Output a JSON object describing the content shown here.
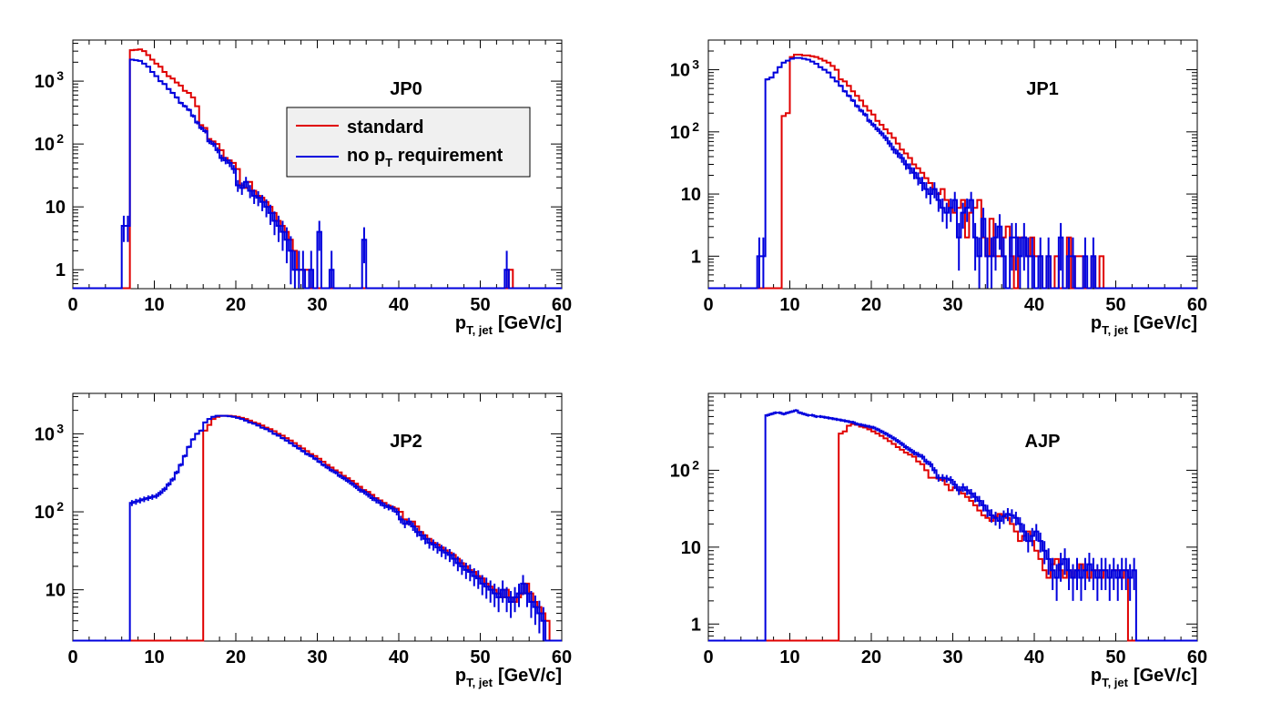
{
  "figure": {
    "xlabel_main": "p",
    "xlabel_sub": "T, jet",
    "xlabel_unit": "[GeV/c]"
  },
  "legend": {
    "entries": [
      {
        "label": "standard",
        "color": "#e00000"
      },
      {
        "label_main": "no p",
        "label_sub": "T",
        "label_rest": " requirement",
        "color": "#0000dd"
      }
    ]
  },
  "chart_data": [
    {
      "type": "line",
      "title": "JP0",
      "xlim": [
        0,
        60
      ],
      "ylim": [
        0.5,
        4500
      ],
      "yscale": "log",
      "xticks": [
        0,
        10,
        20,
        30,
        40,
        50,
        60
      ],
      "yticks": [
        {
          "value": 1,
          "main": "1",
          "sup": ""
        },
        {
          "value": 10,
          "main": "10",
          "sup": ""
        },
        {
          "value": 100,
          "main": "10",
          "sup": "2"
        },
        {
          "value": 1000,
          "main": "10",
          "sup": "3"
        }
      ],
      "bin_width": 0.5,
      "series": [
        {
          "name": "standard",
          "color": "#e00000",
          "x_start": 7,
          "values": [
            3100,
            3150,
            3200,
            3000,
            2600,
            2200,
            1900,
            1700,
            1400,
            1200,
            1100,
            950,
            850,
            700,
            650,
            550,
            400,
            200,
            180,
            120,
            110,
            100,
            80,
            60,
            55,
            50,
            40,
            22,
            20,
            25,
            18,
            15,
            14,
            12,
            10,
            8,
            6,
            5,
            4,
            3,
            2,
            1,
            1,
            1,
            0,
            0,
            0,
            0,
            0,
            0,
            0,
            0,
            0,
            0,
            0,
            0,
            0,
            0,
            0,
            0,
            0,
            0,
            0,
            0,
            0,
            0,
            0,
            0,
            0,
            0,
            0,
            0,
            0,
            0,
            0,
            0,
            0,
            0,
            0,
            0,
            0,
            0,
            0,
            0,
            0,
            0,
            0,
            0,
            0,
            0,
            0,
            0,
            0,
            1,
            0,
            0,
            0,
            0,
            0,
            0,
            0,
            0,
            0,
            0
          ]
        },
        {
          "name": "no p_T requirement",
          "color": "#0000dd",
          "x_start": 6,
          "values": [
            5,
            5,
            2200,
            2150,
            2100,
            1900,
            1700,
            1400,
            1200,
            1000,
            900,
            750,
            650,
            550,
            450,
            400,
            350,
            280,
            220,
            180,
            160,
            110,
            100,
            80,
            60,
            55,
            50,
            40,
            22,
            20,
            25,
            18,
            15,
            14,
            12,
            10,
            8,
            6,
            5,
            4,
            3,
            2,
            1,
            1,
            1,
            0,
            1,
            0,
            4,
            0,
            0,
            1,
            0,
            0,
            0,
            0,
            0,
            0,
            0,
            3,
            0,
            0,
            0,
            0,
            0,
            0,
            0,
            0,
            0,
            0,
            0,
            0,
            0,
            0,
            0,
            0,
            0,
            0,
            0,
            0,
            0,
            0,
            0,
            0,
            0,
            0,
            0,
            0,
            0,
            0,
            0,
            0,
            0,
            0,
            1,
            0,
            0,
            0,
            0,
            0,
            0,
            0,
            0,
            0
          ]
        }
      ]
    },
    {
      "type": "line",
      "title": "JP1",
      "xlim": [
        0,
        60
      ],
      "ylim": [
        0.3,
        3000
      ],
      "yscale": "log",
      "xticks": [
        0,
        10,
        20,
        30,
        40,
        50,
        60
      ],
      "yticks": [
        {
          "value": 1,
          "main": "1",
          "sup": ""
        },
        {
          "value": 10,
          "main": "10",
          "sup": ""
        },
        {
          "value": 100,
          "main": "10",
          "sup": "2"
        },
        {
          "value": 1000,
          "main": "10",
          "sup": "3"
        }
      ],
      "bin_width": 0.5,
      "series": [
        {
          "name": "standard",
          "color": "#e00000",
          "x_start": 9,
          "values": [
            180,
            200,
            1600,
            1750,
            1750,
            1700,
            1700,
            1650,
            1600,
            1500,
            1400,
            1300,
            1150,
            1000,
            700,
            650,
            550,
            450,
            380,
            320,
            260,
            220,
            190,
            150,
            130,
            110,
            95,
            80,
            65,
            52,
            45,
            38,
            30,
            26,
            22,
            18,
            15,
            12,
            10,
            12,
            8,
            6,
            5,
            6,
            8,
            2,
            5,
            6,
            8,
            2,
            1,
            4,
            1,
            1,
            2,
            3,
            1,
            0,
            2,
            2,
            1,
            2,
            1,
            1,
            0,
            1,
            0,
            1,
            0,
            0,
            2,
            0,
            1,
            1,
            0,
            0,
            1,
            0,
            1,
            0,
            0,
            0,
            0,
            0,
            0,
            0,
            0,
            0,
            0,
            0,
            0,
            0,
            0,
            0,
            0,
            0,
            0,
            0,
            0,
            0,
            0,
            0
          ]
        },
        {
          "name": "no p_T requirement",
          "color": "#0000dd",
          "x_start": 6,
          "values": [
            1,
            1,
            700,
            750,
            900,
            1100,
            1300,
            1400,
            1500,
            1550,
            1550,
            1500,
            1450,
            1350,
            1250,
            1100,
            1000,
            900,
            750,
            650,
            550,
            450,
            380,
            320,
            260,
            220,
            190,
            150,
            130,
            110,
            95,
            80,
            65,
            52,
            45,
            38,
            30,
            26,
            22,
            18,
            15,
            12,
            10,
            12,
            8,
            6,
            5,
            6,
            8,
            2,
            5,
            6,
            8,
            2,
            1,
            4,
            1,
            1,
            2,
            3,
            1,
            0,
            2,
            2,
            1,
            2,
            1,
            1,
            0,
            1,
            0,
            1,
            0,
            0,
            2,
            0,
            1,
            1,
            0,
            0,
            1,
            0,
            1,
            0,
            0,
            0,
            0,
            0,
            0,
            0,
            0,
            0,
            0,
            0,
            0,
            0,
            0,
            0,
            0,
            0,
            0,
            0,
            0,
            0,
            0,
            0,
            0,
            0
          ]
        }
      ]
    },
    {
      "type": "line",
      "title": "JP2",
      "xlim": [
        0,
        60
      ],
      "ylim": [
        2.2,
        3300
      ],
      "yscale": "log",
      "xticks": [
        0,
        10,
        20,
        30,
        40,
        50,
        60
      ],
      "yticks": [
        {
          "value": 10,
          "main": "10",
          "sup": ""
        },
        {
          "value": 100,
          "main": "10",
          "sup": "2"
        },
        {
          "value": 1000,
          "main": "10",
          "sup": "3"
        }
      ],
      "bin_width": 0.5,
      "series": [
        {
          "name": "standard",
          "color": "#e00000",
          "x_start": 16,
          "values": [
            1100,
            1300,
            1550,
            1650,
            1700,
            1700,
            1700,
            1680,
            1650,
            1600,
            1550,
            1480,
            1400,
            1350,
            1280,
            1200,
            1150,
            1080,
            1000,
            950,
            880,
            820,
            760,
            700,
            650,
            600,
            550,
            520,
            480,
            440,
            400,
            370,
            340,
            320,
            290,
            270,
            250,
            230,
            210,
            190,
            180,
            165,
            150,
            140,
            130,
            120,
            115,
            110,
            100,
            80,
            70,
            75,
            65,
            55,
            50,
            45,
            40,
            38,
            35,
            32,
            30,
            28,
            25,
            22,
            20,
            18,
            17,
            15,
            14,
            12,
            11,
            10,
            9,
            8,
            10,
            8,
            7,
            8,
            9,
            12,
            9,
            7,
            6,
            5,
            4,
            0,
            0,
            0,
            0,
            0,
            0,
            0,
            0,
            0,
            0,
            0,
            0,
            0,
            0,
            0,
            0,
            0,
            0,
            0,
            0,
            0,
            0,
            0,
            0,
            0,
            0,
            0,
            0,
            0,
            0,
            0,
            0,
            0,
            0,
            0,
            0,
            0,
            0,
            0,
            0,
            0,
            0,
            0,
            0,
            0,
            0,
            0,
            0,
            0,
            0,
            0,
            0,
            0,
            0
          ]
        },
        {
          "name": "no p_T requirement",
          "color": "#0000dd",
          "x_start": 7,
          "values": [
            130,
            135,
            140,
            145,
            150,
            155,
            160,
            175,
            195,
            225,
            260,
            320,
            400,
            520,
            680,
            850,
            1000,
            1100,
            1400,
            1550,
            1650,
            1700,
            1700,
            1700,
            1680,
            1650,
            1600,
            1550,
            1480,
            1400,
            1350,
            1280,
            1200,
            1150,
            1080,
            1000,
            950,
            880,
            820,
            760,
            700,
            650,
            600,
            550,
            520,
            480,
            440,
            400,
            370,
            340,
            320,
            290,
            270,
            250,
            230,
            210,
            190,
            180,
            165,
            150,
            140,
            130,
            120,
            115,
            110,
            100,
            80,
            70,
            75,
            65,
            55,
            50,
            45,
            40,
            38,
            35,
            32,
            30,
            28,
            25,
            22,
            20,
            18,
            17,
            15,
            14,
            12,
            11,
            10,
            9,
            8,
            10,
            8,
            7,
            8,
            9,
            12,
            9,
            7,
            6,
            5,
            4,
            0,
            0,
            0,
            0,
            0
          ]
        }
      ]
    },
    {
      "type": "line",
      "title": "AJP",
      "xlim": [
        0,
        60
      ],
      "ylim": [
        0.6,
        1000
      ],
      "yscale": "log",
      "xticks": [
        0,
        10,
        20,
        30,
        40,
        50,
        60
      ],
      "yticks": [
        {
          "value": 1,
          "main": "1",
          "sup": ""
        },
        {
          "value": 10,
          "main": "10",
          "sup": ""
        },
        {
          "value": 100,
          "main": "10",
          "sup": "2"
        }
      ],
      "bin_width": 0.5,
      "series": [
        {
          "name": "standard",
          "color": "#e00000",
          "x_start": 16,
          "values": [
            300,
            320,
            380,
            400,
            390,
            370,
            360,
            340,
            320,
            300,
            280,
            260,
            240,
            220,
            200,
            185,
            170,
            160,
            150,
            130,
            120,
            100,
            80,
            80,
            78,
            75,
            65,
            55,
            60,
            55,
            50,
            45,
            40,
            35,
            30,
            26,
            24,
            22,
            25,
            27,
            26,
            24,
            20,
            16,
            12,
            14,
            16,
            12,
            9,
            7,
            5,
            4,
            6,
            7,
            5,
            4,
            5,
            4,
            5,
            6,
            5,
            4,
            5,
            5,
            4,
            5,
            4,
            5,
            5,
            4,
            5,
            0,
            0,
            0,
            0,
            0,
            0,
            0,
            0,
            0,
            0,
            0,
            0,
            0,
            0,
            0,
            0,
            0,
            0,
            0,
            0,
            0,
            0,
            0,
            0,
            0,
            0,
            0,
            0,
            0,
            0,
            0,
            0,
            0,
            0,
            0,
            0,
            0,
            0,
            0,
            0,
            0,
            0,
            0,
            0,
            0,
            0
          ]
        },
        {
          "name": "no p_T requirement",
          "color": "#0000dd",
          "x_start": 7,
          "values": [
            520,
            540,
            560,
            560,
            540,
            560,
            580,
            600,
            560,
            540,
            520,
            520,
            500,
            500,
            490,
            480,
            470,
            460,
            450,
            440,
            430,
            420,
            400,
            390,
            380,
            370,
            360,
            340,
            320,
            300,
            280,
            260,
            240,
            220,
            200,
            185,
            170,
            160,
            150,
            130,
            120,
            100,
            80,
            80,
            78,
            75,
            65,
            55,
            60,
            55,
            50,
            45,
            40,
            35,
            30,
            26,
            24,
            22,
            25,
            27,
            26,
            24,
            20,
            16,
            12,
            14,
            16,
            12,
            9,
            7,
            5,
            4,
            6,
            7,
            5,
            4,
            5,
            4,
            5,
            6,
            5,
            4,
            5,
            5,
            4,
            5,
            4,
            5,
            5,
            4,
            5,
            0,
            0,
            0,
            0,
            0,
            0,
            0,
            0,
            0,
            0,
            0,
            0,
            0
          ]
        }
      ]
    }
  ]
}
